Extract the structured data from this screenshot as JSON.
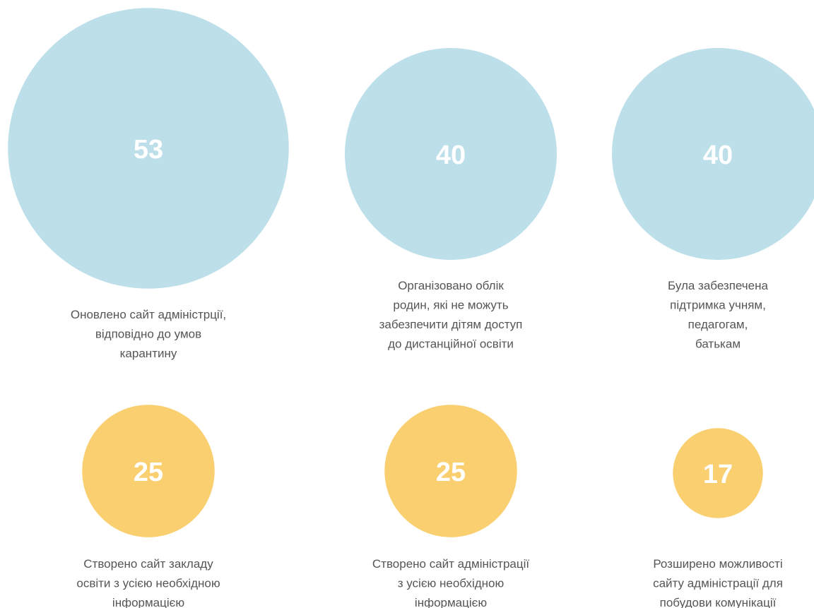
{
  "chart_data": {
    "type": "bubble",
    "values": [
      53,
      40,
      40,
      25,
      25,
      17
    ],
    "colors": [
      "#bddfea",
      "#bddfea",
      "#bddfea",
      "#f9cf6f",
      "#f9cf6f",
      "#f9cf6f"
    ],
    "labels": [
      [
        "Оновлено сайт адміністрції,",
        "відповідно до умов",
        "карантину"
      ],
      [
        "Організовано облік",
        "родин, які не можуть",
        "забезпечити дітям доступ",
        "до дистанційної освіти"
      ],
      [
        "Була забезпечена",
        "підтримка учням,",
        "педагогам,",
        "батькам"
      ],
      [
        "Створено сайт закладу",
        "освіти з усією необхідною",
        "інформацією"
      ],
      [
        "Створено сайт адміністрації",
        "з усією необхідною",
        "інформацією"
      ],
      [
        "Розширено можливості",
        "сайту адміністрації для",
        "побудови комунікації"
      ]
    ]
  }
}
